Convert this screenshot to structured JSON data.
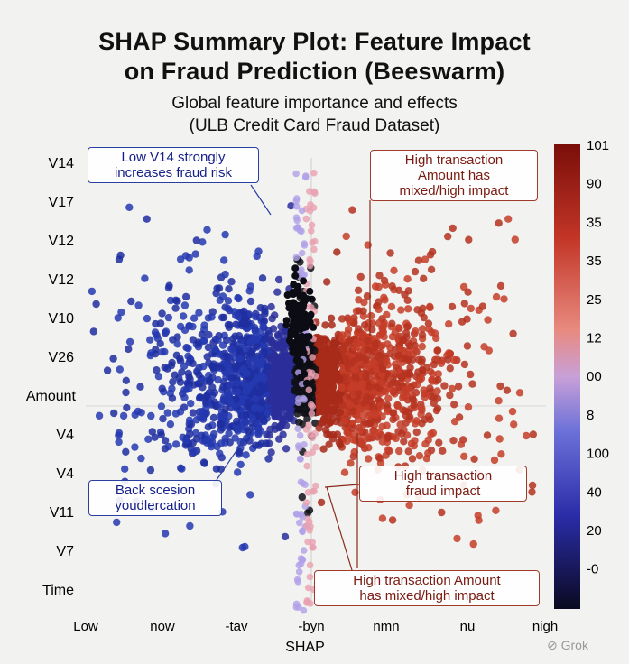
{
  "title_line1": "SHAP Summary Plot: Feature Impact",
  "title_line2": "on Fraud Prediction (Beeswarm)",
  "subtitle_line1": "Global feature importance and effects",
  "subtitle_line2": "(ULB Credit Card Fraud Dataset)",
  "watermark": "Grok",
  "annotations": {
    "low_v14": [
      "Low V14 strongly",
      "increases fraud risk"
    ],
    "high_amount_top": [
      "High transaction",
      "Amount has",
      "mixed/high impact"
    ],
    "back_session": [
      "Back scesion",
      "youdlercation"
    ],
    "high_fraud": [
      "High transaction",
      "fraud impact"
    ],
    "high_amount_bottom": [
      "High transaction Amount",
      "has mixed/high impact"
    ]
  },
  "chart_data": {
    "type": "scatter",
    "subtype": "beeswarm",
    "xlabel": "SHAP",
    "x_tick_labels": [
      "Low",
      "now",
      "-tav",
      "-byn",
      "nmn",
      "nu",
      "nigh"
    ],
    "features": [
      "V14",
      "V17",
      "V12",
      "V12",
      "V10",
      "V26",
      "Amount",
      "V4",
      "V4",
      "V11",
      "V7",
      "Time"
    ],
    "colorbar_labels": [
      "101",
      "90",
      "35",
      "35",
      "25",
      "12",
      "00",
      "8",
      "100",
      "40",
      "20",
      "-0"
    ],
    "colors": {
      "low": "#1c2f9e",
      "mid": "#101016",
      "high": "#b8321e",
      "pink": "#e8a0b0",
      "lavender": "#b0a0e8"
    },
    "grid": true,
    "colorbar_position": "right"
  }
}
